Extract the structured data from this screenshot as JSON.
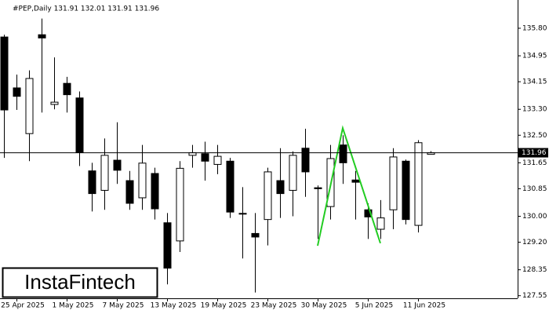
{
  "chart_data": {
    "type": "candlestick",
    "header": "#PEP,Daily  131.91 132.01 131.91 131.96",
    "watermark": "InstaFintech",
    "categories": [
      null,
      "25 Apr 2025",
      null,
      null,
      null,
      "1 May 2025",
      null,
      null,
      null,
      "7 May 2025",
      null,
      null,
      null,
      "13 May 2025",
      null,
      null,
      null,
      "19 May 2025",
      null,
      null,
      null,
      "23 May 2025",
      null,
      null,
      null,
      "30 May 2025",
      null,
      null,
      null,
      "5 Jun 2025",
      null,
      null,
      null,
      "11 Jun 2025",
      null
    ],
    "open": [
      135.53,
      133.96,
      132.55,
      135.6,
      133.45,
      134.1,
      133.65,
      131.4,
      130.8,
      131.73,
      131.1,
      130.57,
      131.32,
      129.8,
      129.24,
      131.88,
      131.93,
      131.6,
      131.7,
      130.07,
      129.47,
      129.9,
      131.1,
      130.8,
      132.1,
      130.88,
      130.3,
      132.2,
      131.12,
      130.2,
      129.6,
      130.2,
      131.7,
      129.72,
      131.91
    ],
    "high": [
      135.6,
      134.37,
      134.5,
      136.1,
      134.9,
      134.3,
      133.85,
      131.65,
      132.4,
      132.9,
      131.4,
      132.2,
      131.5,
      130.1,
      131.7,
      132.2,
      132.3,
      132.2,
      131.8,
      130.9,
      130.1,
      131.5,
      132.1,
      132.0,
      132.7,
      130.95,
      132.2,
      132.5,
      131.4,
      130.4,
      130.5,
      132.1,
      131.75,
      132.35,
      132.01
    ],
    "low": [
      131.8,
      133.28,
      131.7,
      133.2,
      133.3,
      133.2,
      131.55,
      130.15,
      130.2,
      131.0,
      130.2,
      130.2,
      129.9,
      127.9,
      128.9,
      131.5,
      131.1,
      131.3,
      129.95,
      128.7,
      127.65,
      129.1,
      129.95,
      130.0,
      130.6,
      129.3,
      129.9,
      131.0,
      129.9,
      129.3,
      129.3,
      129.6,
      129.75,
      129.5,
      131.91
    ],
    "close": [
      133.28,
      133.7,
      134.25,
      135.5,
      133.52,
      133.75,
      131.97,
      130.7,
      131.88,
      131.42,
      130.4,
      131.64,
      130.23,
      128.4,
      131.48,
      131.96,
      131.7,
      131.85,
      130.13,
      130.09,
      129.36,
      131.37,
      130.7,
      131.88,
      131.37,
      130.85,
      131.78,
      131.65,
      131.05,
      129.98,
      129.95,
      131.83,
      129.9,
      132.27,
      131.96
    ],
    "up_color": "#ffffff",
    "down_color": "#000000",
    "current_price": 131.96,
    "pattern": {
      "color": "#22cc22",
      "x": [
        25,
        27,
        30
      ],
      "values": [
        129.09,
        132.72,
        129.17
      ]
    },
    "ylim": [
      127.47,
      136.55
    ],
    "yticks": [
      {
        "value": 127.55,
        "label": "127.55"
      },
      {
        "value": 128.35,
        "label": "128.35"
      },
      {
        "value": 129.2,
        "label": "129.20"
      },
      {
        "value": 130.0,
        "label": "130.00"
      },
      {
        "value": 130.85,
        "label": "130.85"
      },
      {
        "value": 131.65,
        "label": "131.65"
      },
      {
        "value": 132.5,
        "label": "132.50"
      },
      {
        "value": 133.3,
        "label": "133.30"
      },
      {
        "value": 134.15,
        "label": "134.15"
      },
      {
        "value": 134.95,
        "label": "134.95"
      },
      {
        "value": 135.8,
        "label": "135.80"
      }
    ]
  }
}
